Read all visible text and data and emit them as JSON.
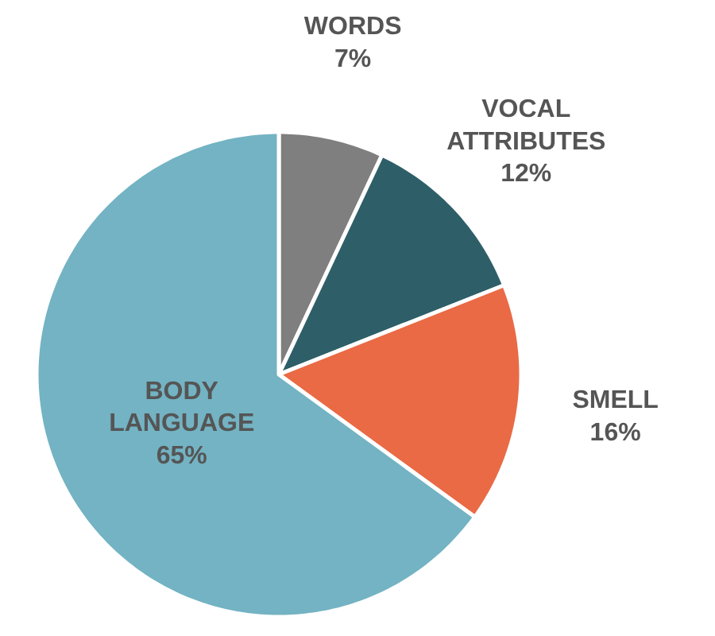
{
  "chart_data": {
    "type": "pie",
    "categories": [
      "WORDS",
      "VOCAL ATTRIBUTES",
      "SMELL",
      "BODY LANGUAGE"
    ],
    "values": [
      7,
      12,
      16,
      65
    ],
    "colors": [
      "#7f7f7f",
      "#2e5f68",
      "#e96a45",
      "#73b3c3"
    ],
    "value_labels": [
      "7%",
      "12%",
      "16%",
      "65%"
    ]
  }
}
